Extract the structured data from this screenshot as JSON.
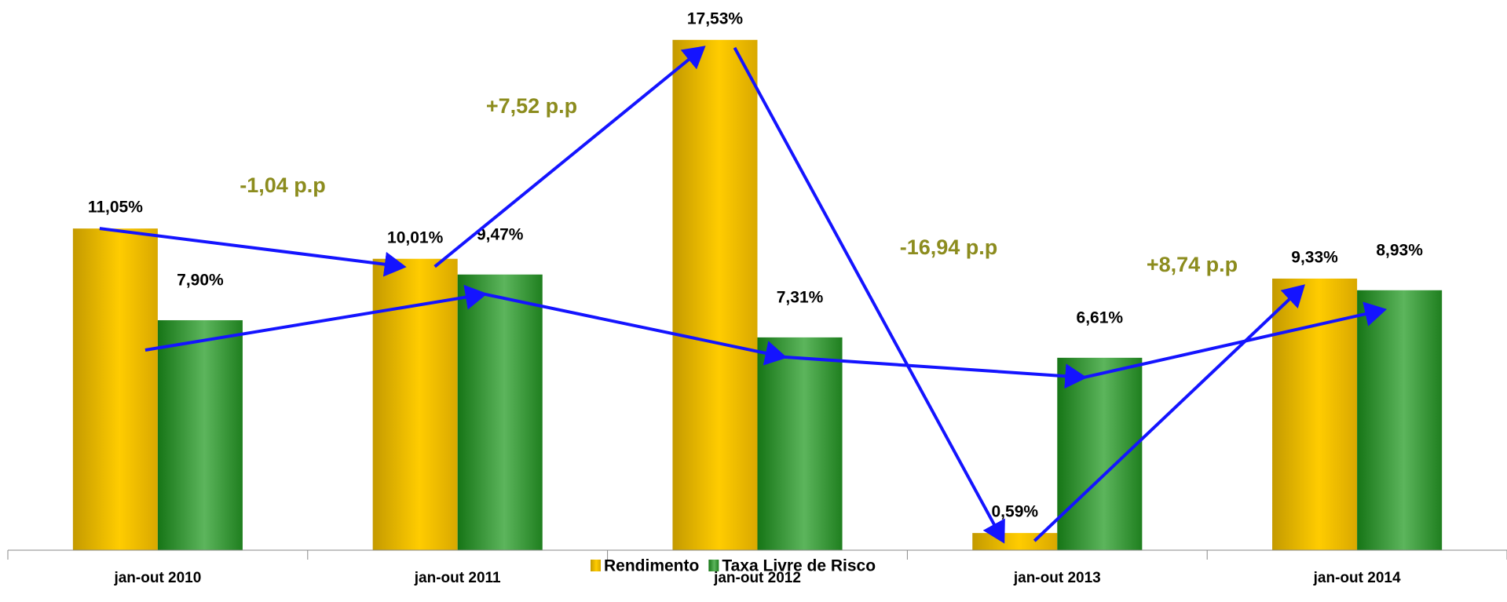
{
  "chart_data": {
    "type": "bar",
    "categories": [
      "jan-out 2010",
      "jan-out 2011",
      "jan-out 2012",
      "jan-out 2013",
      "jan-out 2014"
    ],
    "series": [
      {
        "name": "Rendimento",
        "color": "#ffcc00",
        "values": [
          11.05,
          10.01,
          17.53,
          0.59,
          9.33
        ],
        "value_labels": [
          "11,05%",
          "10,01%",
          "17,53%",
          "0,59%",
          "9,33%"
        ]
      },
      {
        "name": "Taxa Livre de Risco",
        "color": "#2e8b2e",
        "values": [
          7.9,
          9.47,
          7.31,
          6.61,
          8.93
        ],
        "value_labels": [
          "7,90%",
          "9,47%",
          "7,31%",
          "6,61%",
          "8,93%"
        ]
      }
    ],
    "annotations": [
      "-1,04 p.p",
      "+7,52 p.p",
      "-16,94 p.p",
      "+8,74 p.p"
    ],
    "ylim": [
      0,
      18.9
    ]
  }
}
